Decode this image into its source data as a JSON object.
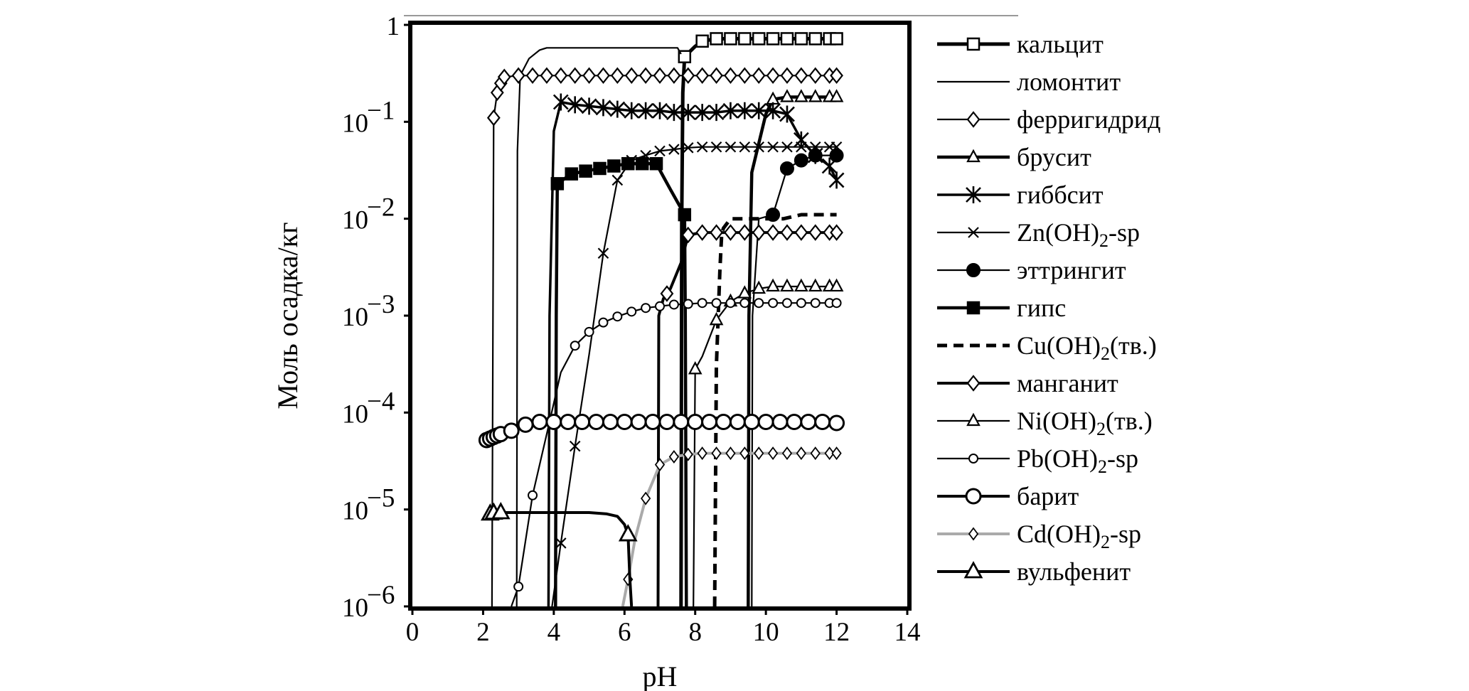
{
  "chart_data": {
    "type": "line",
    "title": "",
    "xlabel": "pH",
    "ylabel": "Моль осадка/кг",
    "xlim": [
      0,
      14
    ],
    "ylim_log10": [
      -6,
      0
    ],
    "yscale": "log",
    "x_ticks": [
      "0",
      "2",
      "4",
      "6",
      "8",
      "10",
      "12",
      "14"
    ],
    "y_ticks": [
      {
        "base": "1",
        "exp": ""
      },
      {
        "base": "10",
        "exp": "−1"
      },
      {
        "base": "10",
        "exp": "−2"
      },
      {
        "base": "10",
        "exp": "−3"
      },
      {
        "base": "10",
        "exp": "−4"
      },
      {
        "base": "10",
        "exp": "−5"
      },
      {
        "base": "10",
        "exp": "−6"
      }
    ],
    "grid": false,
    "legend_position": "right",
    "series": [
      {
        "name": "кальцит",
        "main": "кальцит",
        "sub": "",
        "tail": "",
        "color": "#000000",
        "width": 5,
        "dash": "",
        "marker": "square-open",
        "x": [
          7.6,
          7.62,
          7.65,
          7.7,
          8.0,
          8.2,
          8.6,
          9.0,
          9.4,
          9.8,
          10.2,
          10.6,
          11.0,
          11.4,
          11.8,
          12.0
        ],
        "y": [
          1e-06,
          0.01,
          0.2,
          0.47,
          0.6,
          0.68,
          0.72,
          0.72,
          0.72,
          0.72,
          0.72,
          0.72,
          0.72,
          0.72,
          0.72,
          0.72
        ],
        "mx": [
          7.7,
          8.2,
          8.6,
          9.0,
          9.4,
          9.8,
          10.2,
          10.6,
          11.0,
          11.4,
          11.8,
          12.0
        ]
      },
      {
        "name": "ломонтит",
        "main": "ломонтит",
        "sub": "",
        "tail": "",
        "color": "#000000",
        "width": 2.2,
        "dash": "",
        "marker": "none",
        "x": [
          2.95,
          2.97,
          3.05,
          3.3,
          3.6,
          3.8,
          4.5,
          6.0,
          7.0,
          7.5,
          7.6
        ],
        "y": [
          1e-06,
          0.05,
          0.3,
          0.45,
          0.55,
          0.58,
          0.58,
          0.58,
          0.58,
          0.58,
          0.5
        ],
        "mx": []
      },
      {
        "name": "ферригидрид",
        "main": "ферригидрид",
        "sub": "",
        "tail": "",
        "color": "#000000",
        "width": 2.2,
        "dash": "",
        "marker": "diamond-open",
        "x": [
          2.25,
          2.3,
          2.4,
          2.5,
          2.6,
          3.0,
          3.4,
          3.8,
          4.2,
          4.6,
          5.0,
          5.4,
          5.8,
          6.2,
          6.6,
          7.0,
          7.4,
          7.8,
          8.2,
          8.6,
          9.0,
          9.4,
          9.8,
          10.2,
          10.6,
          11.0,
          11.4,
          11.8,
          12.0
        ],
        "y": [
          1e-06,
          0.11,
          0.2,
          0.25,
          0.29,
          0.3,
          0.3,
          0.3,
          0.3,
          0.3,
          0.3,
          0.3,
          0.3,
          0.3,
          0.3,
          0.3,
          0.3,
          0.3,
          0.3,
          0.3,
          0.3,
          0.3,
          0.3,
          0.3,
          0.3,
          0.3,
          0.3,
          0.3,
          0.3
        ],
        "mx": [
          2.3,
          2.4,
          2.5,
          2.6,
          3.0,
          3.4,
          3.8,
          4.2,
          4.6,
          5.0,
          5.4,
          5.8,
          6.2,
          6.6,
          7.0,
          7.4,
          7.8,
          8.2,
          8.6,
          9.0,
          9.4,
          9.8,
          10.2,
          10.6,
          11.0,
          11.4,
          11.8,
          12.0
        ]
      },
      {
        "name": "брусит",
        "main": "брусит",
        "sub": "",
        "tail": "",
        "color": "#000000",
        "width": 4.5,
        "dash": "",
        "marker": "triangle-open",
        "x": [
          9.5,
          9.52,
          9.6,
          10.0,
          10.2,
          10.6,
          11.0,
          11.4,
          11.8,
          12.0
        ],
        "y": [
          1e-06,
          0.001,
          0.03,
          0.12,
          0.17,
          0.18,
          0.18,
          0.18,
          0.18,
          0.18
        ],
        "mx": [
          10.2,
          10.6,
          11.0,
          11.4,
          11.8,
          12.0
        ]
      },
      {
        "name": "гиббсит",
        "main": "гиббсит",
        "sub": "",
        "tail": "",
        "color": "#000000",
        "width": 3.5,
        "dash": "",
        "marker": "asterisk",
        "x": [
          3.85,
          3.88,
          4.0,
          4.2,
          4.6,
          5.0,
          5.4,
          5.8,
          6.2,
          6.6,
          7.0,
          7.4,
          7.8,
          8.2,
          8.6,
          9.0,
          9.4,
          9.8,
          10.2,
          10.6,
          11.0,
          11.4,
          11.8,
          12.0
        ],
        "y": [
          1e-06,
          0.001,
          0.08,
          0.16,
          0.15,
          0.145,
          0.14,
          0.135,
          0.13,
          0.13,
          0.13,
          0.125,
          0.125,
          0.125,
          0.125,
          0.13,
          0.13,
          0.13,
          0.13,
          0.12,
          0.065,
          0.045,
          0.035,
          0.025
        ],
        "mx": [
          4.2,
          4.6,
          5.0,
          5.4,
          5.8,
          6.2,
          6.6,
          7.0,
          7.4,
          7.8,
          8.2,
          8.6,
          9.0,
          9.4,
          9.8,
          10.2,
          10.6,
          11.0,
          11.4,
          11.8,
          12.0
        ]
      },
      {
        "name": "Zn(OH)2-sp",
        "main": "Zn(OH)",
        "sub": "2",
        "tail": "-sp",
        "color": "#000000",
        "width": 2.2,
        "dash": "",
        "marker": "x",
        "x": [
          3.95,
          4.2,
          4.6,
          5.0,
          5.4,
          5.8,
          6.2,
          6.6,
          7.0,
          7.4,
          7.8,
          8.2,
          8.6,
          9.0,
          9.4,
          9.8,
          10.2,
          10.6,
          11.0,
          11.4,
          11.8,
          12.0
        ],
        "y": [
          1e-06,
          4.5e-06,
          4.5e-05,
          0.0004,
          0.0044,
          0.025,
          0.04,
          0.045,
          0.05,
          0.052,
          0.054,
          0.055,
          0.055,
          0.055,
          0.055,
          0.055,
          0.055,
          0.055,
          0.055,
          0.055,
          0.055,
          0.055
        ],
        "mx": [
          4.2,
          4.6,
          5.4,
          5.8,
          6.2,
          6.6,
          7.0,
          7.4,
          7.8,
          8.2,
          8.6,
          9.0,
          9.4,
          9.8,
          10.2,
          10.6,
          11.0,
          11.4,
          11.8,
          12.0
        ]
      },
      {
        "name": "эттрингит",
        "main": "эттрингит",
        "sub": "",
        "tail": "",
        "color": "#000000",
        "width": 2.2,
        "dash": "",
        "marker": "circle-filled",
        "x": [
          9.6,
          9.62,
          9.8,
          10.2,
          10.6,
          11.0,
          11.4,
          12.0
        ],
        "y": [
          1e-06,
          0.001,
          0.01,
          0.011,
          0.033,
          0.04,
          0.045,
          0.045
        ],
        "mx": [
          10.2,
          10.6,
          11.0,
          11.4,
          12.0
        ]
      },
      {
        "name": "гипс",
        "main": "гипс",
        "sub": "",
        "tail": "",
        "color": "#000000",
        "width": 4.5,
        "dash": "",
        "marker": "square-filled",
        "x": [
          4.05,
          4.07,
          4.1,
          4.5,
          4.9,
          5.3,
          5.7,
          6.1,
          6.5,
          6.9,
          7.3,
          7.7,
          7.72,
          7.75
        ],
        "y": [
          1e-06,
          0.001,
          0.023,
          0.029,
          0.031,
          0.033,
          0.035,
          0.037,
          0.037,
          0.037,
          0.02,
          0.011,
          0.001,
          1e-06
        ],
        "mx": [
          4.1,
          4.5,
          4.9,
          5.3,
          5.7,
          6.1,
          6.5,
          6.9,
          7.7
        ]
      },
      {
        "name": "Cu(OH)2(тв.)",
        "main": "Cu(OH)",
        "sub": "2",
        "tail": "(тв.)",
        "color": "#000000",
        "width": 5,
        "dash": "14 9",
        "marker": "none",
        "x": [
          8.55,
          8.6,
          8.7,
          8.75,
          8.8,
          9.0,
          9.5,
          10.0,
          10.5,
          11.0,
          11.5,
          12.0
        ],
        "y": [
          1e-06,
          0.0003,
          0.003,
          0.007,
          0.008,
          0.01,
          0.01,
          0.01,
          0.01,
          0.011,
          0.011,
          0.011
        ],
        "mx": []
      },
      {
        "name": "манганит",
        "main": "манганит",
        "sub": "",
        "tail": "",
        "color": "#000000",
        "width": 4,
        "dash": "",
        "marker": "diamond-open",
        "x": [
          6.95,
          6.97,
          7.1,
          7.3,
          7.6,
          7.8,
          8.2,
          8.6,
          9.0,
          9.4,
          9.8,
          10.2,
          10.6,
          11.0,
          11.4,
          11.8,
          12.0
        ],
        "y": [
          1e-06,
          0.001,
          0.0015,
          0.0019,
          0.0035,
          0.0068,
          0.0072,
          0.0072,
          0.0072,
          0.0072,
          0.0072,
          0.0072,
          0.0072,
          0.0072,
          0.0072,
          0.0072,
          0.0072
        ],
        "mx": [
          7.2,
          7.8,
          8.2,
          8.6,
          9.0,
          9.4,
          9.8,
          10.2,
          10.6,
          11.0,
          11.4,
          11.8,
          12.0
        ]
      },
      {
        "name": "Ni(OH)2(тв.)",
        "main": "Ni(OH)",
        "sub": "2",
        "tail": "(тв.)",
        "color": "#000000",
        "width": 2.2,
        "dash": "",
        "marker": "triangle-open",
        "x": [
          7.95,
          8.0,
          8.2,
          8.6,
          9.0,
          9.4,
          9.8,
          10.2,
          10.6,
          11.0,
          11.4,
          11.8,
          12.0
        ],
        "y": [
          1e-06,
          0.00028,
          0.00038,
          0.0009,
          0.0014,
          0.0017,
          0.0019,
          0.002,
          0.002,
          0.002,
          0.002,
          0.002,
          0.002
        ],
        "mx": [
          8.0,
          8.6,
          9.0,
          9.4,
          9.8,
          10.2,
          10.6,
          11.0,
          11.4,
          11.8,
          12.0
        ]
      },
      {
        "name": "Pb(OH)2-sp",
        "main": "Pb(OH)",
        "sub": "2",
        "tail": "-sp",
        "color": "#000000",
        "width": 2.2,
        "dash": "",
        "marker": "circle-open",
        "x": [
          2.8,
          3.0,
          3.4,
          3.8,
          4.2,
          4.6,
          5.0,
          5.4,
          5.8,
          6.2,
          6.6,
          7.0,
          7.4,
          7.8,
          8.2,
          8.6,
          9.0,
          9.4,
          9.8,
          10.2,
          10.6,
          11.0,
          11.4,
          11.8,
          12.0
        ],
        "y": [
          1e-06,
          1.6e-06,
          1.4e-05,
          6e-05,
          0.00026,
          0.00049,
          0.00068,
          0.00085,
          0.00098,
          0.0011,
          0.0012,
          0.00125,
          0.0013,
          0.00132,
          0.00135,
          0.00135,
          0.00135,
          0.00135,
          0.00135,
          0.00135,
          0.00135,
          0.00135,
          0.00135,
          0.00135,
          0.00135
        ],
        "mx": [
          3.0,
          3.4,
          4.6,
          5.0,
          5.4,
          5.8,
          6.2,
          6.6,
          7.0,
          7.4,
          7.8,
          8.2,
          8.6,
          9.0,
          9.4,
          9.8,
          10.2,
          10.6,
          11.0,
          11.4,
          11.8,
          12.0
        ]
      },
      {
        "name": "барит",
        "main": "барит",
        "sub": "",
        "tail": "",
        "color": "#000000",
        "width": 4,
        "dash": "",
        "marker": "circle-open-large",
        "x": [
          2.1,
          2.2,
          2.3,
          2.4,
          2.5,
          2.8,
          3.2,
          3.6,
          4.0,
          4.4,
          4.8,
          5.2,
          5.6,
          6.0,
          6.4,
          6.8,
          7.2,
          7.6,
          8.0,
          8.4,
          8.8,
          9.2,
          9.6,
          10.0,
          10.4,
          10.8,
          11.2,
          11.6,
          12.0
        ],
        "y": [
          5.2e-05,
          5.4e-05,
          5.6e-05,
          5.8e-05,
          6e-05,
          6.5e-05,
          7.5e-05,
          8e-05,
          8e-05,
          8e-05,
          8e-05,
          8e-05,
          8e-05,
          8e-05,
          8e-05,
          8e-05,
          8e-05,
          8e-05,
          8e-05,
          8e-05,
          8e-05,
          8e-05,
          8e-05,
          8e-05,
          8e-05,
          8e-05,
          8e-05,
          8e-05,
          7.8e-05
        ],
        "mx": [
          2.1,
          2.2,
          2.3,
          2.4,
          2.5,
          2.8,
          3.2,
          3.6,
          4.0,
          4.4,
          4.8,
          5.2,
          5.6,
          6.0,
          6.4,
          6.8,
          7.2,
          7.6,
          8.0,
          8.4,
          8.8,
          9.2,
          9.6,
          10.0,
          10.4,
          10.8,
          11.2,
          11.6,
          12.0
        ]
      },
      {
        "name": "Cd(OH)2-sp",
        "main": "Cd(OH)",
        "sub": "2",
        "tail": "-sp",
        "color": "#aaaaaa",
        "width": 4,
        "dash": "",
        "marker": "diamond-open-small",
        "x": [
          5.95,
          6.1,
          6.3,
          6.6,
          7.0,
          7.4,
          7.8,
          8.2,
          8.6,
          9.0,
          9.4,
          9.8,
          10.2,
          10.6,
          11.0,
          11.4,
          11.8,
          12.0
        ],
        "y": [
          1e-06,
          1.9e-06,
          5e-06,
          1.3e-05,
          2.9e-05,
          3.5e-05,
          3.7e-05,
          3.8e-05,
          3.8e-05,
          3.8e-05,
          3.8e-05,
          3.8e-05,
          3.8e-05,
          3.8e-05,
          3.8e-05,
          3.8e-05,
          3.8e-05,
          3.8e-05
        ],
        "mx": [
          6.1,
          6.6,
          7.0,
          7.4,
          7.8,
          8.2,
          8.6,
          9.0,
          9.4,
          9.8,
          10.2,
          10.6,
          11.0,
          11.4,
          11.8,
          12.0
        ]
      },
      {
        "name": "вульфенит",
        "main": "вульфенит",
        "sub": "",
        "tail": "",
        "color": "#000000",
        "width": 4,
        "dash": "",
        "marker": "triangle-open-large",
        "x": [
          2.1,
          2.2,
          2.3,
          2.5,
          3.0,
          3.5,
          4.0,
          4.5,
          5.0,
          5.5,
          5.8,
          6.0,
          6.1,
          6.15,
          6.2
        ],
        "y": [
          8.5e-06,
          9e-06,
          9.2e-06,
          9.3e-06,
          9.3e-06,
          9.3e-06,
          9.3e-06,
          9.3e-06,
          9.3e-06,
          9e-06,
          8.5e-06,
          7e-06,
          5.5e-06,
          2e-06,
          1e-06
        ],
        "mx": [
          2.2,
          2.3,
          2.5,
          6.1
        ]
      }
    ]
  }
}
